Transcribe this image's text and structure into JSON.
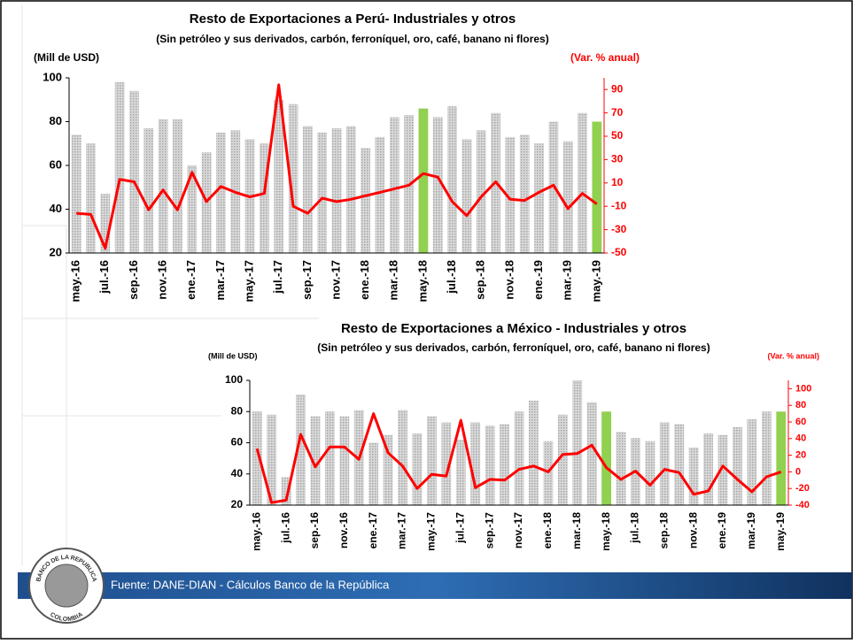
{
  "chart_data": [
    {
      "type": "bar-line",
      "title": "Resto de Exportaciones a Perú- Industriales y otros",
      "subtitle": "(Sin petróleo y sus derivados, carbón, ferroníquel, oro, café, banano ni flores)",
      "y_label": "(Mill de USD)",
      "y2_label": "(Var. % anual)",
      "categories": [
        "may.-16",
        null,
        "jul.-16",
        null,
        "sep.-16",
        null,
        "nov.-16",
        null,
        "ene.-17",
        null,
        "mar.-17",
        null,
        "may.-17",
        null,
        "jul.-17",
        null,
        "sep.-17",
        null,
        "nov.-17",
        null,
        "ene.-18",
        null,
        "mar.-18",
        null,
        "may.-18",
        null,
        "jul.-18",
        null,
        "sep.-18",
        null,
        "nov.-18",
        null,
        "ene.-19",
        null,
        "mar.-19",
        null,
        "may.-19"
      ],
      "series": [
        {
          "kind": "bar",
          "color": "#bfbfbf",
          "colors": [
            "#bfbfbf",
            "#bfbfbf",
            "#bfbfbf",
            "#bfbfbf",
            "#bfbfbf",
            "#bfbfbf",
            "#bfbfbf",
            "#bfbfbf",
            "#bfbfbf",
            "#bfbfbf",
            "#bfbfbf",
            "#bfbfbf",
            "#bfbfbf",
            "#bfbfbf",
            "#bfbfbf",
            "#bfbfbf",
            "#bfbfbf",
            "#bfbfbf",
            "#bfbfbf",
            "#bfbfbf",
            "#bfbfbf",
            "#bfbfbf",
            "#bfbfbf",
            "#bfbfbf",
            "#92d050",
            "#bfbfbf",
            "#bfbfbf",
            "#bfbfbf",
            "#bfbfbf",
            "#bfbfbf",
            "#bfbfbf",
            "#bfbfbf",
            "#bfbfbf",
            "#bfbfbf",
            "#bfbfbf",
            "#bfbfbf",
            "#92d050"
          ],
          "values": [
            74,
            70,
            47,
            98,
            94,
            77,
            81,
            81,
            60,
            66,
            75,
            76,
            72,
            70,
            90,
            88,
            78,
            75,
            77,
            78,
            68,
            73,
            82,
            83,
            86,
            82,
            87,
            72,
            76,
            84,
            73,
            74,
            70,
            80,
            71,
            84,
            80
          ]
        },
        {
          "kind": "line",
          "color": "#ff0000",
          "axis": "y2",
          "values": [
            -16,
            -17,
            -46,
            13,
            11,
            -13,
            4,
            -13,
            19,
            -6,
            7,
            2,
            -2,
            1,
            94,
            -10,
            -16,
            -3,
            -6,
            -4,
            -1,
            2,
            5,
            8,
            18,
            15,
            -6,
            -18,
            -2,
            11,
            -4,
            -5,
            2,
            8,
            -12,
            1,
            -8
          ]
        }
      ],
      "ylim": [
        20,
        100
      ],
      "yticks": [
        20,
        40,
        60,
        80,
        100
      ],
      "y2lim": [
        -50,
        100
      ],
      "y2ticks": [
        -50,
        -30,
        -10,
        10,
        30,
        50,
        70,
        90
      ]
    },
    {
      "type": "bar-line",
      "title": "Resto de Exportaciones a México - Industriales y otros",
      "subtitle": "(Sin petróleo y sus derivados, carbón, ferroníquel, oro, café, banano ni flores)",
      "y_label": "(Mill de USD)",
      "y2_label": "(Var. % anual)",
      "categories": [
        "may.-16",
        null,
        "jul.-16",
        null,
        "sep.-16",
        null,
        "nov.-16",
        null,
        "ene.-17",
        null,
        "mar.-17",
        null,
        "may.-17",
        null,
        "jul.-17",
        null,
        "sep.-17",
        null,
        "nov.-17",
        null,
        "ene.-18",
        null,
        "mar.-18",
        null,
        "may.-18",
        null,
        "jul.-18",
        null,
        "sep.-18",
        null,
        "nov.-18",
        null,
        "ene.-19",
        null,
        "mar.-19",
        null,
        "may.-19"
      ],
      "series": [
        {
          "kind": "bar",
          "color": "#bfbfbf",
          "colors": [
            "#bfbfbf",
            "#bfbfbf",
            "#bfbfbf",
            "#bfbfbf",
            "#bfbfbf",
            "#bfbfbf",
            "#bfbfbf",
            "#bfbfbf",
            "#bfbfbf",
            "#bfbfbf",
            "#bfbfbf",
            "#bfbfbf",
            "#bfbfbf",
            "#bfbfbf",
            "#bfbfbf",
            "#bfbfbf",
            "#bfbfbf",
            "#bfbfbf",
            "#bfbfbf",
            "#bfbfbf",
            "#bfbfbf",
            "#bfbfbf",
            "#bfbfbf",
            "#bfbfbf",
            "#92d050",
            "#bfbfbf",
            "#bfbfbf",
            "#bfbfbf",
            "#bfbfbf",
            "#bfbfbf",
            "#bfbfbf",
            "#bfbfbf",
            "#bfbfbf",
            "#bfbfbf",
            "#bfbfbf",
            "#bfbfbf",
            "#92d050"
          ],
          "values": [
            80,
            78,
            38,
            91,
            77,
            80,
            77,
            81,
            60,
            65,
            81,
            66,
            77,
            73,
            62,
            73,
            71,
            72,
            80,
            87,
            61,
            78,
            100,
            86,
            80,
            67,
            63,
            61,
            73,
            72,
            57,
            66,
            65,
            70,
            75,
            80,
            80
          ]
        },
        {
          "kind": "line",
          "color": "#ff0000",
          "axis": "y2",
          "values": [
            28,
            -37,
            -34,
            45,
            6,
            30,
            30,
            15,
            70,
            23,
            7,
            -20,
            -3,
            -5,
            62,
            -19,
            -9,
            -10,
            3,
            7,
            0,
            21,
            22,
            32,
            5,
            -9,
            1,
            -16,
            3,
            -1,
            -27,
            -23,
            7,
            -9,
            -24,
            -6,
            0
          ]
        }
      ],
      "ylim": [
        20,
        100
      ],
      "yticks": [
        20,
        40,
        60,
        80,
        100
      ],
      "y2lim": [
        -40,
        110
      ],
      "y2ticks": [
        -40,
        -20,
        0,
        20,
        40,
        60,
        80,
        100
      ]
    }
  ],
  "footer": {
    "source": "Fuente: DANE-DIAN - Cálculos Banco de la República"
  },
  "logo": {
    "top": "BANCO DE LA REPUBLICA",
    "bottom": "COLOMBIA"
  }
}
